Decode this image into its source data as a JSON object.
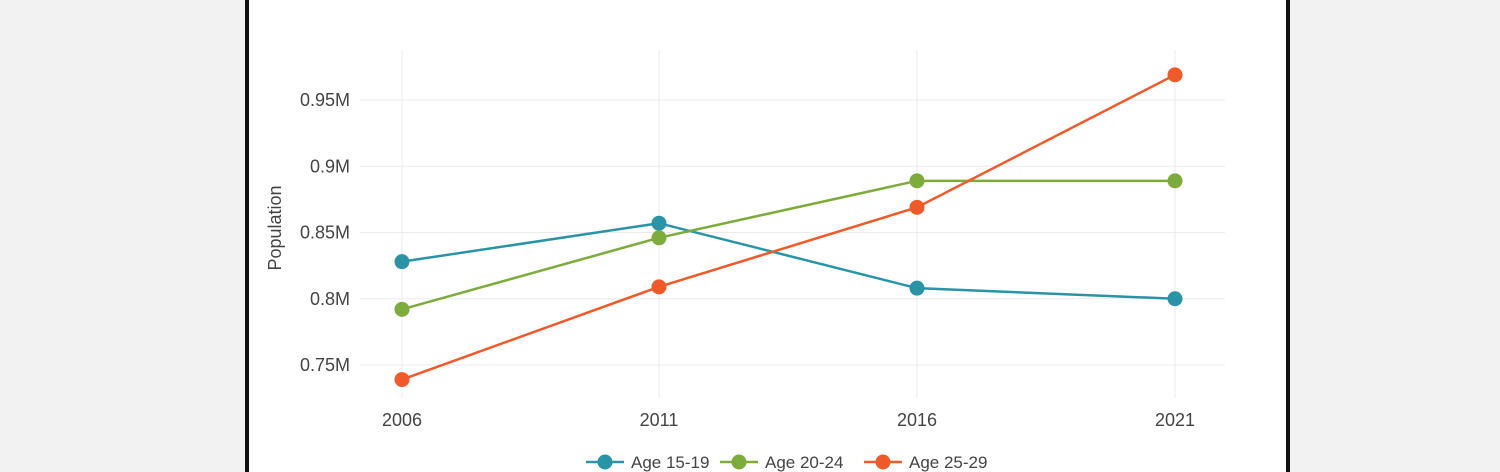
{
  "chart_data": {
    "type": "line",
    "x": [
      "2006",
      "2011",
      "2016",
      "2021"
    ],
    "ylabel": "Population",
    "y_ticks": [
      "0.75M",
      "0.8M",
      "0.85M",
      "0.9M",
      "0.95M"
    ],
    "y_tick_values": [
      750000,
      800000,
      850000,
      900000,
      950000
    ],
    "ylim": [
      725000,
      990000
    ],
    "grid": true,
    "legend_position": "bottom",
    "series": [
      {
        "name": "Age 15-19",
        "color": "#2a93a6",
        "values": [
          828000,
          857000,
          808000,
          800000
        ]
      },
      {
        "name": "Age 20-24",
        "color": "#7dac3c",
        "values": [
          792000,
          846000,
          889000,
          889000
        ]
      },
      {
        "name": "Age 25-29",
        "color": "#f05a2b",
        "values": [
          739000,
          809000,
          869000,
          969000
        ]
      }
    ]
  }
}
